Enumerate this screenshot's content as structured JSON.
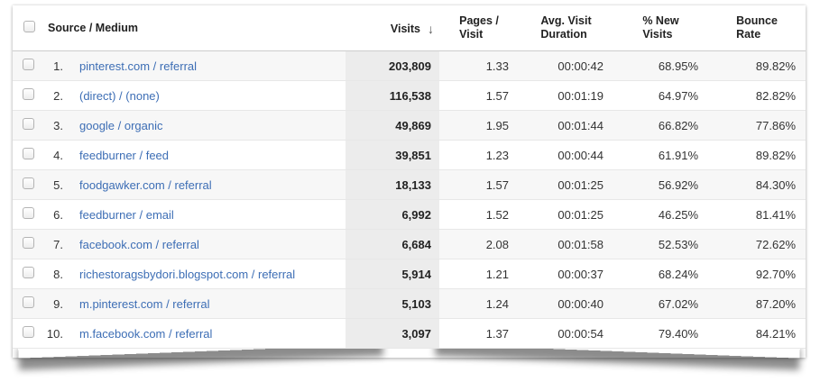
{
  "header": {
    "source_medium": "Source / Medium",
    "visits": "Visits",
    "sort_arrow": "↓",
    "pages_visit": [
      "Pages /",
      "Visit"
    ],
    "avg_visit_duration": [
      "Avg. Visit",
      "Duration"
    ],
    "pct_new_visits": [
      "% New",
      "Visits"
    ],
    "bounce_rate": [
      "Bounce",
      "Rate"
    ]
  },
  "table": {
    "rows": [
      {
        "index": "1.",
        "source": "pinterest.com / referral",
        "visits": "203,809",
        "pages_per_visit": "1.33",
        "avg_visit_duration": "00:00:42",
        "pct_new_visits": "68.95%",
        "bounce_rate": "89.82%"
      },
      {
        "index": "2.",
        "source": "(direct) / (none)",
        "visits": "116,538",
        "pages_per_visit": "1.57",
        "avg_visit_duration": "00:01:19",
        "pct_new_visits": "64.97%",
        "bounce_rate": "82.82%"
      },
      {
        "index": "3.",
        "source": "google / organic",
        "visits": "49,869",
        "pages_per_visit": "1.95",
        "avg_visit_duration": "00:01:44",
        "pct_new_visits": "66.82%",
        "bounce_rate": "77.86%"
      },
      {
        "index": "4.",
        "source": "feedburner / feed",
        "visits": "39,851",
        "pages_per_visit": "1.23",
        "avg_visit_duration": "00:00:44",
        "pct_new_visits": "61.91%",
        "bounce_rate": "89.82%"
      },
      {
        "index": "5.",
        "source": "foodgawker.com / referral",
        "visits": "18,133",
        "pages_per_visit": "1.57",
        "avg_visit_duration": "00:01:25",
        "pct_new_visits": "56.92%",
        "bounce_rate": "84.30%"
      },
      {
        "index": "6.",
        "source": "feedburner / email",
        "visits": "6,992",
        "pages_per_visit": "1.52",
        "avg_visit_duration": "00:01:25",
        "pct_new_visits": "46.25%",
        "bounce_rate": "81.41%"
      },
      {
        "index": "7.",
        "source": "facebook.com / referral",
        "visits": "6,684",
        "pages_per_visit": "2.08",
        "avg_visit_duration": "00:01:58",
        "pct_new_visits": "52.53%",
        "bounce_rate": "72.62%"
      },
      {
        "index": "8.",
        "source": "richestoragsbydori.blogspot.com / referral",
        "visits": "5,914",
        "pages_per_visit": "1.21",
        "avg_visit_duration": "00:00:37",
        "pct_new_visits": "68.24%",
        "bounce_rate": "92.70%"
      },
      {
        "index": "9.",
        "source": "m.pinterest.com / referral",
        "visits": "5,103",
        "pages_per_visit": "1.24",
        "avg_visit_duration": "00:00:40",
        "pct_new_visits": "67.02%",
        "bounce_rate": "87.20%"
      },
      {
        "index": "10.",
        "source": "m.facebook.com / referral",
        "visits": "3,097",
        "pages_per_visit": "1.37",
        "avg_visit_duration": "00:00:54",
        "pct_new_visits": "79.40%",
        "bounce_rate": "84.21%"
      }
    ]
  },
  "colors": {
    "link_blue": "#3d6eb5",
    "visits_column_bg": "#ececec",
    "alt_row_bg": "#f7f7f7",
    "row_border": "#e7e7e7",
    "header_border": "#cccccc",
    "text": "#333333"
  }
}
